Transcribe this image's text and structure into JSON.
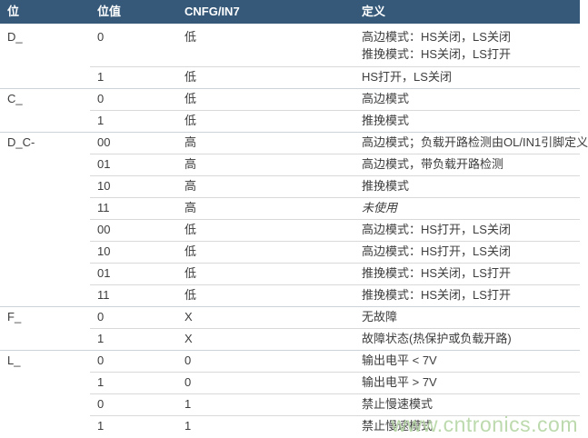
{
  "header": {
    "columns": [
      "位",
      "位值",
      "CNFG/IN7",
      "定义"
    ]
  },
  "table": {
    "groups": [
      {
        "bit": "D_",
        "rows": [
          {
            "value": "0",
            "cnfg": "低",
            "lines": [
              "高边模式：HS关闭，LS关闭",
              "推挽模式：HS关闭，LS打开"
            ]
          },
          {
            "value": "1",
            "cnfg": "低",
            "lines": [
              "HS打开，LS关闭"
            ]
          }
        ]
      },
      {
        "bit": "C_",
        "rows": [
          {
            "value": "0",
            "cnfg": "低",
            "lines": [
              "高边模式"
            ]
          },
          {
            "value": "1",
            "cnfg": "低",
            "lines": [
              "推挽模式"
            ]
          }
        ]
      },
      {
        "bit": "D_C-",
        "rows": [
          {
            "value": "00",
            "cnfg": "高",
            "lines": [
              "高边模式；负载开路检测由OL/IN1引脚定义"
            ]
          },
          {
            "value": "01",
            "cnfg": "高",
            "lines": [
              "高边模式，带负载开路检测"
            ]
          },
          {
            "value": "10",
            "cnfg": "高",
            "lines": [
              "推挽模式"
            ]
          },
          {
            "value": "11",
            "cnfg": "高",
            "lines": [
              "未使用"
            ],
            "italic": true
          },
          {
            "value": "00",
            "cnfg": "低",
            "lines": [
              "高边模式：HS打开，LS关闭"
            ]
          },
          {
            "value": "10",
            "cnfg": "低",
            "lines": [
              "高边模式：HS打开，LS关闭"
            ]
          },
          {
            "value": "01",
            "cnfg": "低",
            "lines": [
              "推挽模式：HS关闭，LS打开"
            ]
          },
          {
            "value": "11",
            "cnfg": "低",
            "lines": [
              "推挽模式：HS关闭，LS打开"
            ]
          }
        ]
      },
      {
        "bit": "F_",
        "rows": [
          {
            "value": "0",
            "cnfg": "X",
            "lines": [
              "无故障"
            ]
          },
          {
            "value": "1",
            "cnfg": "X",
            "lines": [
              "故障状态(热保护或负载开路)"
            ]
          }
        ]
      },
      {
        "bit": "L_",
        "rows": [
          {
            "value": "0",
            "cnfg": "0",
            "lines": [
              "输出电平 < 7V"
            ]
          },
          {
            "value": "1",
            "cnfg": "0",
            "lines": [
              "输出电平 > 7V"
            ]
          },
          {
            "value": "0",
            "cnfg": "1",
            "lines": [
              "禁止慢速模式"
            ]
          },
          {
            "value": "1",
            "cnfg": "1",
            "lines": [
              "禁止慢速模式"
            ]
          }
        ]
      }
    ]
  },
  "watermark": {
    "text": "www.cntronics.com"
  },
  "colors": {
    "header_bg": "#36597a",
    "header_text": "#ffffff",
    "body_text": "#3d3d3d",
    "row_divider": "#d9d9d9",
    "group_divider": "#cdd3d7",
    "watermark": "#b5d7a5"
  }
}
